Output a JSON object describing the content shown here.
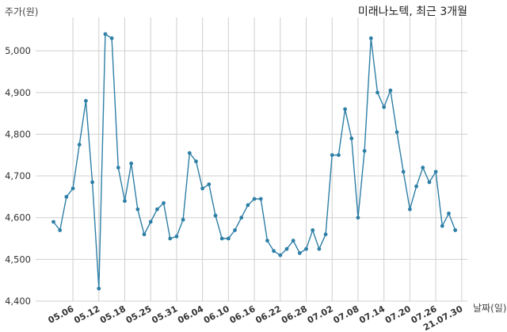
{
  "chart_data": {
    "type": "line",
    "title": "미래나노텍, 최근 3개월",
    "ylabel": "주가(원)",
    "xlabel": "날짜(일)",
    "ylim": [
      4400,
      5080
    ],
    "yticks": [
      4400,
      4500,
      4600,
      4700,
      4800,
      4900,
      5000
    ],
    "ytick_labels": [
      "4,400",
      "4,500",
      "4,600",
      "4,700",
      "4,800",
      "4,900",
      "5,000"
    ],
    "xtick_labels": [
      "05.06",
      "05.12",
      "05.18",
      "05.25",
      "05.31",
      "06.04",
      "06.10",
      "06.16",
      "06.22",
      "06.28",
      "07.02",
      "07.08",
      "07.14",
      "07.20",
      "07.26",
      "21.07.30"
    ],
    "xtick_indices": [
      3,
      7,
      11,
      15,
      19,
      23,
      27,
      31,
      35,
      39,
      43,
      47,
      51,
      55,
      59,
      63
    ],
    "grid": true,
    "line_color": "#2e7fa6",
    "series": [
      {
        "values": [
          4590,
          4570,
          4650,
          4670,
          4775,
          4880,
          4685,
          4430,
          5040,
          5030,
          4720,
          4640,
          4730,
          4620,
          4560,
          4590,
          4620,
          4635,
          4550,
          4555,
          4595,
          4755,
          4735,
          4670,
          4680,
          4605,
          4550,
          4550,
          4570,
          4600,
          4630,
          4645,
          4645,
          4545,
          4520,
          4510,
          4525,
          4545,
          4515,
          4525,
          4570,
          4525,
          4560,
          4750,
          4750,
          4860,
          4790,
          4600,
          4760,
          5030,
          4900,
          4865,
          4905,
          4805,
          4710,
          4620,
          4675,
          4720,
          4685,
          4710,
          4580,
          4610,
          4570
        ]
      }
    ]
  }
}
